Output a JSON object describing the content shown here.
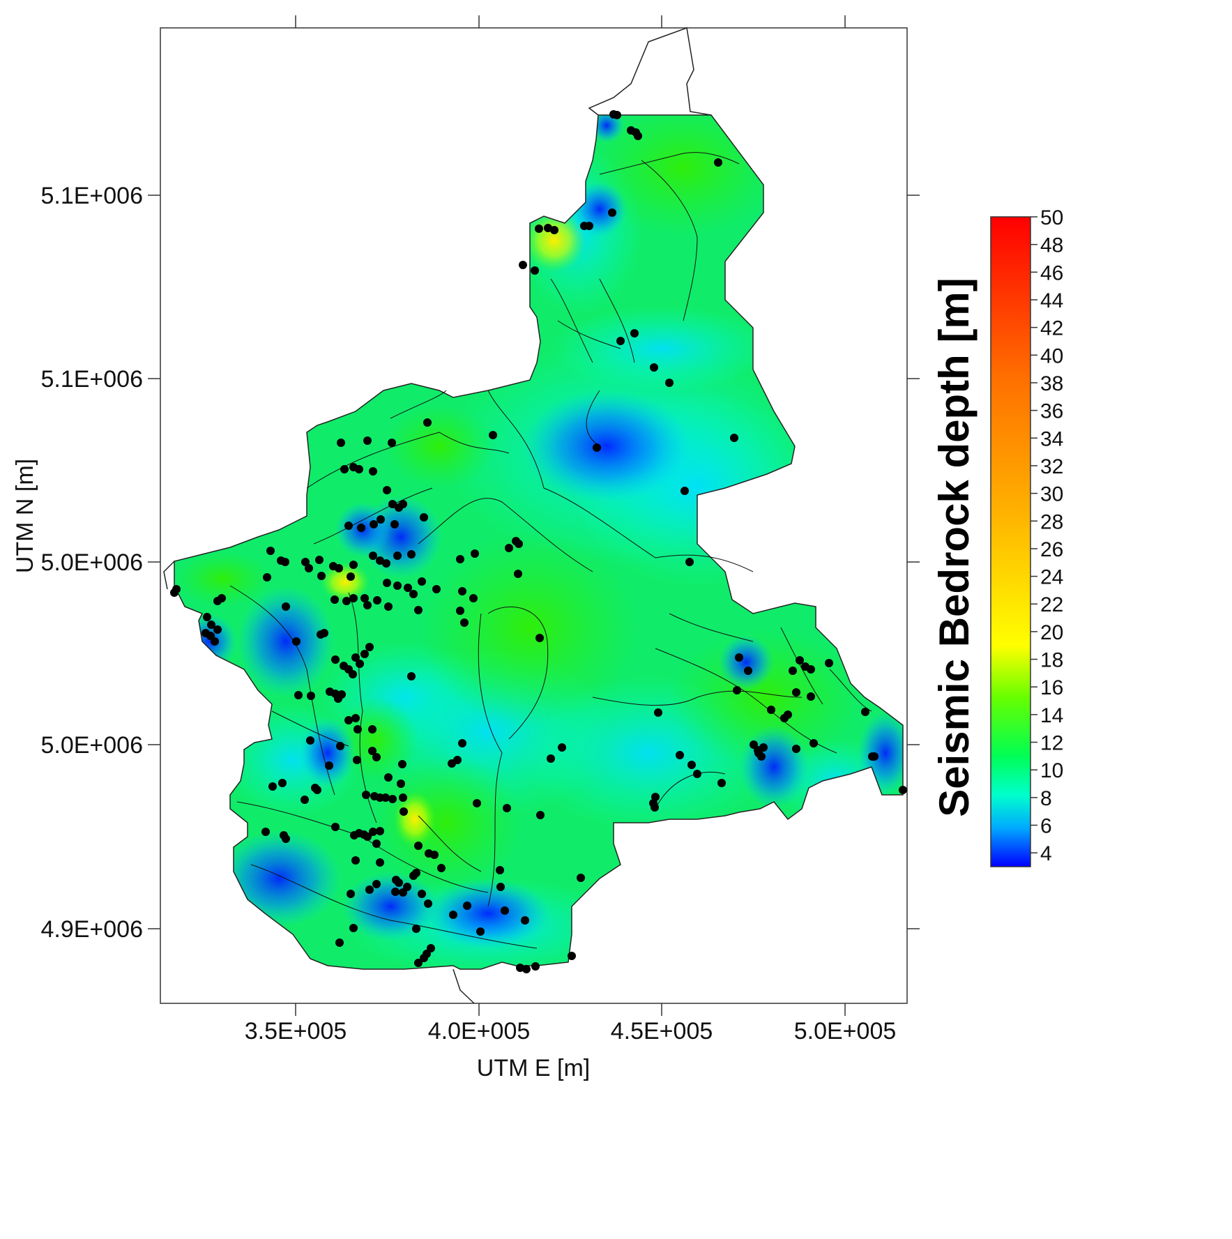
{
  "chart_data": {
    "type": "heatmap",
    "xlabel": "UTM E [m]",
    "ylabel": "UTM N [m]",
    "x_ticks": [
      "3.5E+005",
      "4.0E+005",
      "4.5E+005",
      "5.0E+005"
    ],
    "x_tick_values": [
      350000,
      400000,
      450000,
      500000
    ],
    "y_ticks": [
      "5.1E+006",
      "5.1E+006",
      "5.0E+006",
      "5.0E+006",
      "4.9E+006"
    ],
    "y_tick_values": [
      5125000,
      5100000,
      5050000,
      5000000,
      4950000
    ],
    "xlim": [
      313000,
      517000
    ],
    "ylim": [
      4930000,
      5163000
    ],
    "colorbar": {
      "title": "Seismic Bedrock depth [m]",
      "ticks": [
        4,
        6,
        8,
        10,
        12,
        14,
        16,
        18,
        20,
        22,
        24,
        26,
        28,
        30,
        32,
        34,
        36,
        38,
        40,
        42,
        44,
        46,
        48,
        50
      ],
      "range": [
        3,
        50
      ],
      "colors": [
        "#0000ff",
        "#00c8ff",
        "#00ffaa",
        "#00ff00",
        "#ffff00",
        "#ffa500",
        "#ff0000"
      ]
    },
    "grid": false,
    "legend": "right",
    "points_marker_color": "#000000"
  }
}
